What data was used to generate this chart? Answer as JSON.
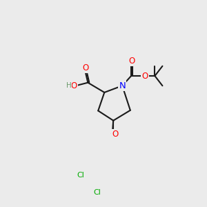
{
  "bg_color": "#ebebeb",
  "bond_color": "#1a1a1a",
  "bond_width": 1.5,
  "atom_colors": {
    "O": "#ff0000",
    "N": "#0000ff",
    "Cl": "#00aa00",
    "C": "#1a1a1a",
    "H": "#6a9a6a"
  },
  "font_size": 8.5,
  "fig_size": [
    3.0,
    3.0
  ],
  "dpi": 100
}
